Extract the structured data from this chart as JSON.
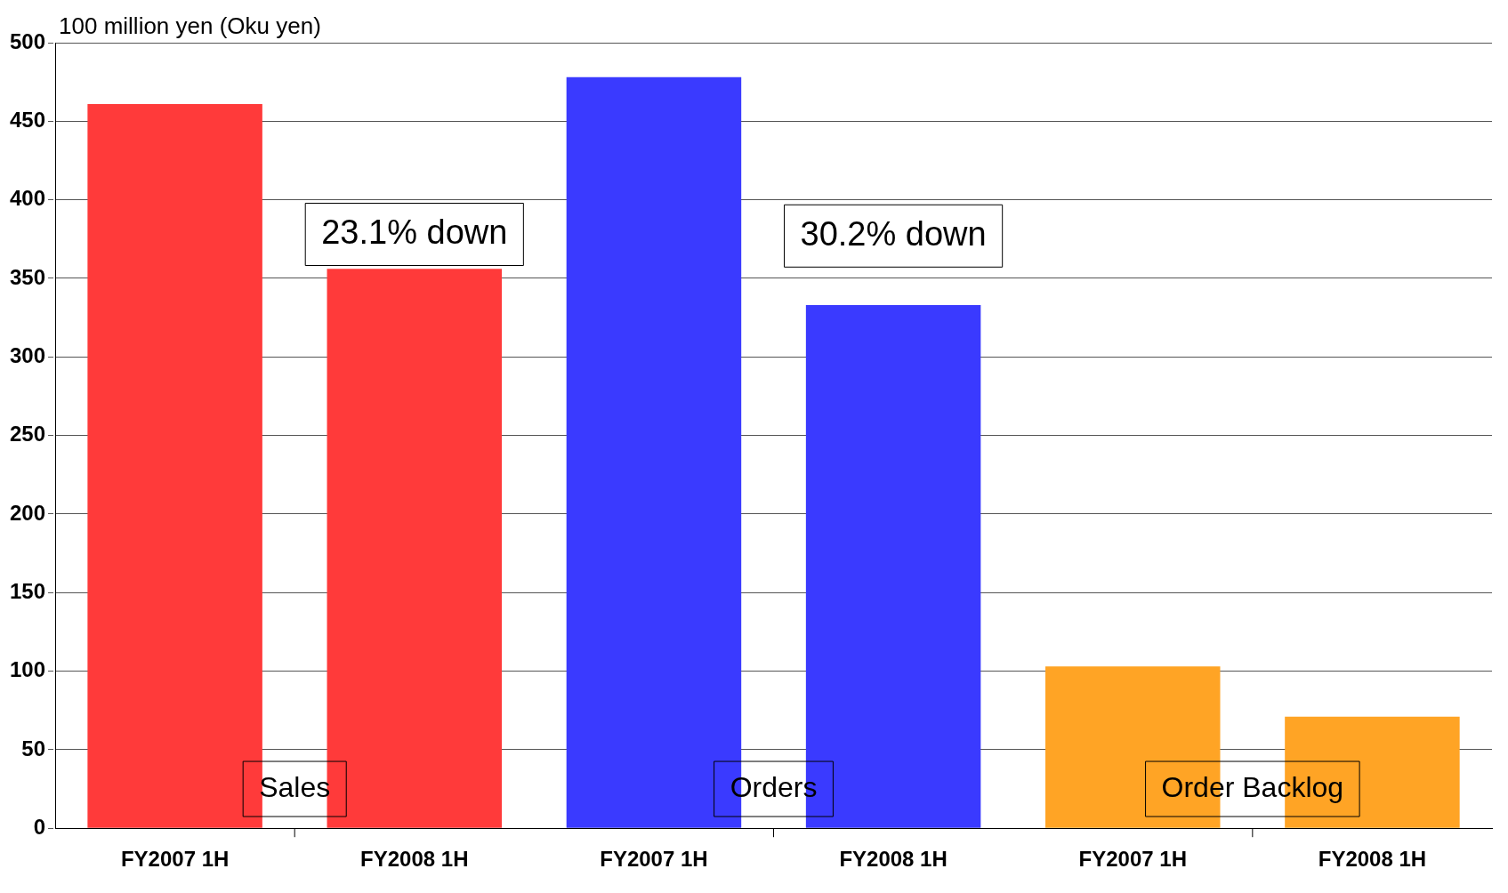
{
  "chart_data": {
    "type": "bar",
    "ylabel": "100 million yen (Oku yen)",
    "categories": [
      "FY2007 1H",
      "FY2008 1H",
      "FY2007 1H",
      "FY2008 1H",
      "FY2007 1H",
      "FY2008 1H"
    ],
    "values": [
      461,
      356,
      478,
      333,
      103,
      71
    ],
    "colors": [
      "#ff3a3a",
      "#ff3a3a",
      "#3a3aff",
      "#3a3aff",
      "#ffa425",
      "#ffa425"
    ],
    "ylim": [
      0,
      500
    ],
    "yticks": [
      0,
      50,
      100,
      150,
      200,
      250,
      300,
      350,
      400,
      450,
      500
    ],
    "grid": "y",
    "legend": false,
    "annotations": [
      "Sales",
      "Orders",
      "Order Backlog",
      "23.1% down",
      "30.2% down"
    ]
  }
}
